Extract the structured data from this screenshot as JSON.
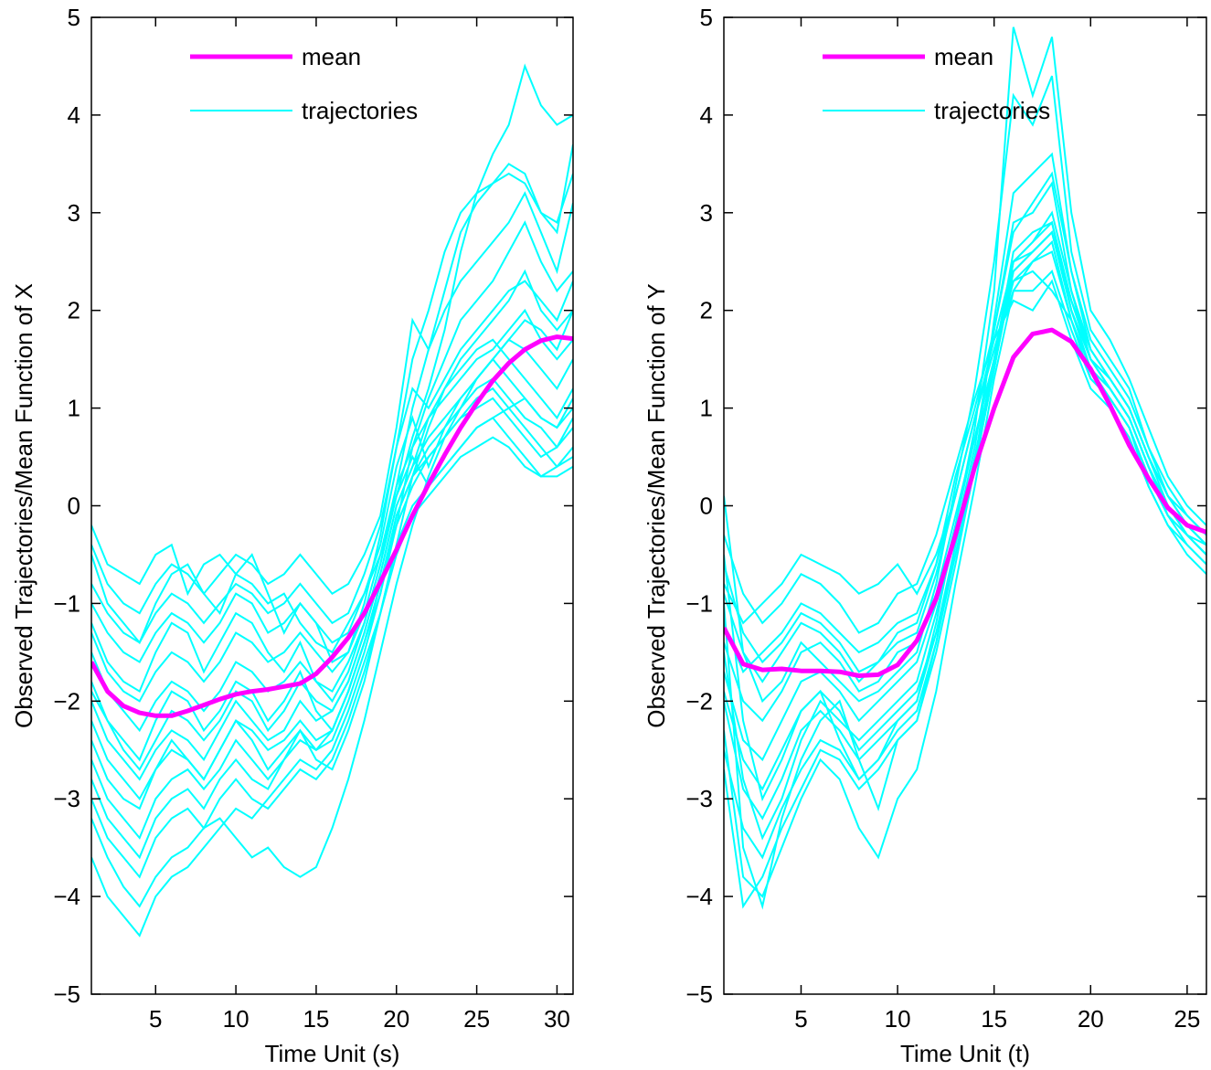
{
  "chart_data": [
    {
      "type": "line",
      "xlabel": "Time Unit (s)",
      "ylabel": "Observed Trajectories/Mean Function of X",
      "xlim": [
        1,
        31
      ],
      "ylim": [
        -5,
        5
      ],
      "xticks": [
        5,
        10,
        15,
        20,
        25,
        30
      ],
      "yticks": [
        -5,
        -4,
        -3,
        -2,
        -1,
        0,
        1,
        2,
        3,
        4,
        5
      ],
      "grid": false,
      "legend": {
        "placement": "top-left",
        "entries": [
          "mean",
          "trajectories"
        ]
      },
      "colors": {
        "mean": "#ff00ff",
        "trajectories": "#00ffff"
      },
      "mean": {
        "x": [
          1,
          2,
          3,
          4,
          5,
          6,
          7,
          8,
          9,
          10,
          11,
          12,
          13,
          14,
          15,
          16,
          17,
          18,
          19,
          20,
          21,
          22,
          23,
          24,
          25,
          26,
          27,
          28,
          29,
          30,
          31
        ],
        "y": [
          -1.6,
          -1.9,
          -2.05,
          -2.12,
          -2.15,
          -2.15,
          -2.1,
          -2.04,
          -1.98,
          -1.93,
          -1.9,
          -1.88,
          -1.85,
          -1.82,
          -1.72,
          -1.55,
          -1.35,
          -1.1,
          -0.78,
          -0.45,
          -0.1,
          0.22,
          0.52,
          0.8,
          1.05,
          1.28,
          1.46,
          1.6,
          1.69,
          1.73,
          1.71
        ]
      },
      "trajectories": [
        [
          -0.2,
          -0.6,
          -0.7,
          -0.8,
          -0.5,
          -0.4,
          -0.9,
          -0.6,
          -0.5,
          -0.7,
          -0.8,
          -1.0,
          -0.9,
          -1.2,
          -1.4,
          -1.5,
          -1.2,
          -0.9,
          -0.5,
          0.1,
          0.7,
          1.2,
          1.8,
          2.6,
          3.2,
          3.6,
          3.9,
          4.5,
          4.1,
          3.9,
          4.0
        ],
        [
          -0.5,
          -1.0,
          -1.2,
          -1.4,
          -1.0,
          -0.7,
          -0.6,
          -0.9,
          -1.1,
          -0.7,
          -0.5,
          -0.9,
          -1.3,
          -1.0,
          -1.2,
          -1.6,
          -1.5,
          -1.0,
          -0.3,
          0.6,
          1.5,
          2.0,
          2.6,
          3.0,
          3.2,
          3.3,
          3.5,
          3.4,
          3.0,
          2.8,
          3.7
        ],
        [
          -1.2,
          -1.6,
          -1.8,
          -1.9,
          -1.5,
          -1.2,
          -1.3,
          -1.7,
          -1.4,
          -1.1,
          -1.2,
          -1.5,
          -1.7,
          -1.4,
          -1.8,
          -2.0,
          -1.7,
          -1.2,
          -0.6,
          0.2,
          1.0,
          1.6,
          2.0,
          2.3,
          2.5,
          2.7,
          2.9,
          3.2,
          2.8,
          2.4,
          3.1
        ],
        [
          -1.8,
          -2.2,
          -2.4,
          -2.6,
          -2.2,
          -1.9,
          -2.0,
          -2.3,
          -2.1,
          -1.8,
          -1.9,
          -2.2,
          -2.0,
          -1.7,
          -2.1,
          -2.3,
          -1.9,
          -1.4,
          -0.9,
          -0.2,
          0.6,
          1.1,
          1.5,
          1.9,
          2.1,
          2.3,
          2.6,
          2.9,
          2.5,
          2.2,
          2.4
        ],
        [
          -2.4,
          -2.8,
          -3.0,
          -3.1,
          -2.7,
          -2.4,
          -2.6,
          -2.8,
          -2.5,
          -2.2,
          -2.4,
          -2.7,
          -2.5,
          -2.3,
          -2.6,
          -2.7,
          -2.3,
          -1.8,
          -1.1,
          -0.4,
          0.3,
          0.8,
          1.2,
          1.5,
          1.7,
          1.9,
          2.1,
          2.4,
          2.0,
          1.8,
          2.0
        ],
        [
          -3.2,
          -3.6,
          -3.9,
          -4.1,
          -3.8,
          -3.6,
          -3.5,
          -3.3,
          -3.2,
          -3.4,
          -3.6,
          -3.5,
          -3.7,
          -3.8,
          -3.7,
          -3.3,
          -2.8,
          -2.2,
          -1.5,
          -0.8,
          -0.2,
          0.3,
          0.7,
          1.0,
          1.3,
          1.5,
          1.7,
          1.6,
          1.4,
          1.2,
          1.5
        ],
        [
          -2.0,
          -2.4,
          -2.6,
          -2.8,
          -2.5,
          -2.3,
          -2.4,
          -2.6,
          -2.3,
          -2.0,
          -2.2,
          -2.4,
          -2.3,
          -2.0,
          -2.2,
          -2.1,
          -1.8,
          -1.3,
          -0.7,
          0.0,
          0.4,
          0.9,
          1.2,
          1.4,
          1.6,
          1.7,
          1.5,
          1.3,
          1.1,
          0.9,
          1.2
        ],
        [
          -1.0,
          -1.3,
          -1.5,
          -1.6,
          -1.3,
          -1.1,
          -1.2,
          -1.4,
          -1.2,
          -0.9,
          -1.0,
          -1.3,
          -1.2,
          -1.0,
          -1.2,
          -1.4,
          -1.3,
          -0.9,
          -0.4,
          0.4,
          0.9,
          0.4,
          0.8,
          1.1,
          1.3,
          1.5,
          1.7,
          1.9,
          1.8,
          1.6,
          2.0
        ],
        [
          -2.8,
          -3.2,
          -3.4,
          -3.6,
          -3.2,
          -3.0,
          -2.9,
          -3.1,
          -2.8,
          -2.6,
          -2.8,
          -2.9,
          -2.6,
          -2.3,
          -2.5,
          -2.4,
          -2.0,
          -1.5,
          -0.9,
          -0.1,
          0.3,
          0.5,
          0.7,
          0.9,
          1.0,
          1.1,
          0.9,
          0.7,
          0.5,
          0.6,
          0.9
        ],
        [
          -1.5,
          -1.9,
          -2.1,
          -2.3,
          -2.0,
          -1.8,
          -1.9,
          -2.1,
          -1.9,
          -1.6,
          -1.7,
          -1.9,
          -1.8,
          -1.6,
          -1.8,
          -1.9,
          -1.6,
          -1.2,
          -0.6,
          0.1,
          0.5,
          0.2,
          0.4,
          0.6,
          0.8,
          0.9,
          1.0,
          1.1,
          0.9,
          0.8,
          1.1
        ],
        [
          -3.6,
          -4.0,
          -4.2,
          -4.4,
          -4.0,
          -3.8,
          -3.7,
          -3.5,
          -3.3,
          -3.1,
          -3.2,
          -3.0,
          -2.8,
          -2.6,
          -2.7,
          -2.5,
          -2.1,
          -1.6,
          -1.1,
          -0.5,
          -0.1,
          0.1,
          0.3,
          0.5,
          0.6,
          0.7,
          0.6,
          0.4,
          0.3,
          0.4,
          0.6
        ],
        [
          -0.8,
          -1.1,
          -1.3,
          -1.4,
          -1.1,
          -0.9,
          -1.0,
          -1.2,
          -1.0,
          -0.8,
          -0.9,
          -1.1,
          -1.0,
          -0.8,
          -1.0,
          -1.2,
          -1.1,
          -0.7,
          -0.2,
          0.6,
          1.2,
          1.0,
          1.3,
          1.6,
          1.8,
          2.0,
          2.2,
          2.3,
          2.1,
          1.9,
          2.3
        ],
        [
          -2.2,
          -2.6,
          -2.8,
          -3.0,
          -2.7,
          -2.5,
          -2.6,
          -2.8,
          -2.5,
          -2.2,
          -2.3,
          -2.5,
          -2.4,
          -2.2,
          -2.4,
          -2.3,
          -1.9,
          -1.4,
          -0.8,
          -0.1,
          0.3,
          0.6,
          0.8,
          1.0,
          1.2,
          1.3,
          1.1,
          0.9,
          0.8,
          0.6,
          0.8
        ],
        [
          -1.3,
          -1.7,
          -1.9,
          -2.0,
          -1.7,
          -1.5,
          -1.6,
          -1.8,
          -1.6,
          -1.3,
          -1.4,
          -1.6,
          -1.5,
          -1.3,
          -1.5,
          -1.7,
          -1.5,
          -1.1,
          -0.5,
          0.2,
          0.6,
          0.9,
          1.1,
          1.3,
          1.5,
          1.6,
          1.8,
          2.0,
          1.7,
          1.5,
          1.7
        ],
        [
          -2.6,
          -3.0,
          -3.2,
          -3.4,
          -3.0,
          -2.8,
          -2.7,
          -2.9,
          -2.7,
          -2.4,
          -2.6,
          -2.8,
          -2.6,
          -2.4,
          -2.5,
          -2.3,
          -1.9,
          -1.4,
          -0.8,
          -0.2,
          0.2,
          0.5,
          0.7,
          0.9,
          1.1,
          1.2,
          1.0,
          0.8,
          0.6,
          0.4,
          0.5
        ],
        [
          -0.4,
          -0.8,
          -1.0,
          -1.1,
          -0.8,
          -0.6,
          -0.7,
          -0.9,
          -0.7,
          -0.5,
          -0.6,
          -0.8,
          -0.7,
          -0.5,
          -0.7,
          -0.9,
          -0.8,
          -0.5,
          -0.1,
          0.8,
          1.9,
          1.6,
          2.2,
          2.8,
          3.1,
          3.3,
          3.4,
          3.3,
          3.0,
          2.9,
          3.4
        ],
        [
          -1.9,
          -2.2,
          -2.5,
          -2.7,
          -2.4,
          -2.1,
          -2.2,
          -2.4,
          -2.2,
          -1.9,
          -2.0,
          -2.3,
          -2.1,
          -1.8,
          -2.0,
          -2.1,
          -1.8,
          -1.3,
          -0.7,
          0.0,
          0.4,
          0.7,
          0.9,
          1.1,
          1.3,
          1.5,
          1.3,
          1.1,
          0.9,
          0.8,
          1.0
        ],
        [
          -3.0,
          -3.4,
          -3.6,
          -3.8,
          -3.4,
          -3.2,
          -3.1,
          -3.3,
          -3.0,
          -2.8,
          -3.0,
          -3.1,
          -2.9,
          -2.7,
          -2.8,
          -2.6,
          -2.2,
          -1.7,
          -1.1,
          -0.4,
          0.0,
          0.2,
          0.4,
          0.6,
          0.8,
          0.9,
          0.7,
          0.5,
          0.3,
          0.3,
          0.4
        ]
      ]
    },
    {
      "type": "line",
      "xlabel": "Time Unit (t)",
      "ylabel": "Observed Trajectories/Mean Function of Y",
      "xlim": [
        1,
        26
      ],
      "ylim": [
        -5,
        5
      ],
      "xticks": [
        5,
        10,
        15,
        20,
        25
      ],
      "yticks": [
        -5,
        -4,
        -3,
        -2,
        -1,
        0,
        1,
        2,
        3,
        4,
        5
      ],
      "grid": false,
      "legend": {
        "placement": "top-left",
        "entries": [
          "mean",
          "trajectories"
        ]
      },
      "colors": {
        "mean": "#ff00ff",
        "trajectories": "#00ffff"
      },
      "mean": {
        "x": [
          1,
          2,
          3,
          4,
          5,
          6,
          7,
          8,
          9,
          10,
          11,
          12,
          13,
          14,
          15,
          16,
          17,
          18,
          19,
          20,
          21,
          22,
          23,
          24,
          25,
          26
        ],
        "y": [
          -1.25,
          -1.62,
          -1.68,
          -1.67,
          -1.69,
          -1.69,
          -1.7,
          -1.74,
          -1.73,
          -1.63,
          -1.38,
          -0.95,
          -0.3,
          0.4,
          1.0,
          1.52,
          1.76,
          1.8,
          1.68,
          1.4,
          1.03,
          0.62,
          0.28,
          -0.02,
          -0.2,
          -0.27
        ]
      },
      "trajectories": [
        [
          0.1,
          -1.5,
          -2.0,
          -1.8,
          -1.4,
          -1.6,
          -1.8,
          -2.0,
          -1.9,
          -1.7,
          -1.5,
          -0.8,
          0.2,
          1.2,
          2.5,
          4.2,
          3.9,
          4.4,
          2.6,
          1.8,
          1.5,
          1.2,
          0.6,
          0.2,
          -0.1,
          -0.3
        ],
        [
          -0.5,
          -2.2,
          -3.0,
          -2.6,
          -2.1,
          -1.9,
          -2.4,
          -2.8,
          -2.6,
          -2.2,
          -2.0,
          -1.2,
          -0.2,
          0.8,
          2.2,
          4.9,
          4.2,
          4.8,
          3.0,
          2.0,
          1.7,
          1.3,
          0.8,
          0.3,
          0.0,
          -0.2
        ],
        [
          -1.0,
          -3.5,
          -4.1,
          -3.2,
          -2.6,
          -2.2,
          -2.0,
          -2.6,
          -3.1,
          -2.4,
          -2.2,
          -1.5,
          -0.6,
          0.4,
          1.9,
          3.2,
          3.4,
          3.6,
          2.4,
          1.6,
          1.3,
          1.0,
          0.5,
          0.0,
          -0.3,
          -0.5
        ],
        [
          -1.5,
          -2.8,
          -3.4,
          -3.0,
          -2.4,
          -2.0,
          -2.2,
          -2.4,
          -2.2,
          -2.0,
          -1.8,
          -1.1,
          -0.3,
          0.6,
          1.8,
          2.9,
          3.0,
          3.3,
          2.2,
          1.5,
          1.2,
          0.9,
          0.4,
          -0.1,
          -0.4,
          -0.6
        ],
        [
          -0.8,
          -1.2,
          -1.0,
          -0.8,
          -0.5,
          -0.6,
          -0.7,
          -0.9,
          -0.8,
          -0.6,
          -0.9,
          -0.5,
          0.1,
          0.9,
          1.6,
          2.3,
          2.4,
          2.2,
          1.9,
          1.4,
          1.1,
          0.8,
          0.3,
          -0.1,
          -0.3,
          -0.4
        ],
        [
          -1.7,
          -2.4,
          -2.6,
          -2.2,
          -1.8,
          -1.7,
          -1.9,
          -2.2,
          -2.0,
          -1.8,
          -1.6,
          -1.0,
          -0.2,
          0.7,
          1.5,
          2.6,
          2.8,
          2.9,
          2.0,
          1.4,
          1.2,
          0.9,
          0.4,
          0.0,
          -0.2,
          -0.4
        ],
        [
          -2.3,
          -3.8,
          -4.0,
          -3.5,
          -3.0,
          -2.6,
          -2.8,
          -3.3,
          -3.6,
          -3.0,
          -2.7,
          -1.9,
          -0.8,
          0.2,
          1.3,
          2.2,
          2.5,
          2.7,
          1.9,
          1.3,
          1.1,
          0.8,
          0.2,
          -0.2,
          -0.5,
          -0.7
        ],
        [
          -0.3,
          -0.9,
          -1.2,
          -1.0,
          -0.7,
          -0.8,
          -1.0,
          -1.3,
          -1.2,
          -0.9,
          -0.8,
          -0.3,
          0.4,
          1.1,
          1.7,
          2.1,
          2.0,
          2.3,
          1.7,
          1.2,
          1.0,
          0.7,
          0.2,
          -0.2,
          -0.4,
          -0.6
        ],
        [
          -1.9,
          -2.6,
          -2.9,
          -2.5,
          -2.1,
          -1.9,
          -2.1,
          -2.5,
          -2.3,
          -2.1,
          -1.9,
          -1.3,
          -0.5,
          0.4,
          1.4,
          2.4,
          2.6,
          2.8,
          2.1,
          1.6,
          1.3,
          1.0,
          0.5,
          0.1,
          -0.2,
          -0.4
        ],
        [
          -1.2,
          -1.7,
          -1.5,
          -1.3,
          -1.0,
          -1.1,
          -1.3,
          -1.5,
          -1.4,
          -1.2,
          -1.1,
          -0.6,
          0.1,
          0.9,
          1.6,
          2.2,
          2.2,
          2.4,
          1.8,
          1.3,
          1.1,
          0.8,
          0.3,
          -0.1,
          -0.3,
          -0.5
        ],
        [
          -2.7,
          -4.1,
          -3.8,
          -3.3,
          -2.9,
          -2.5,
          -2.6,
          -2.9,
          -2.7,
          -2.4,
          -2.2,
          -1.4,
          -0.4,
          0.5,
          1.4,
          2.5,
          2.7,
          3.0,
          2.2,
          1.6,
          1.3,
          1.0,
          0.5,
          0.1,
          -0.2,
          -0.4
        ],
        [
          -0.6,
          -1.3,
          -1.6,
          -1.4,
          -1.1,
          -1.2,
          -1.4,
          -1.7,
          -1.6,
          -1.3,
          -1.2,
          -0.6,
          0.3,
          1.0,
          1.8,
          2.8,
          3.1,
          3.4,
          2.4,
          1.7,
          1.4,
          1.1,
          0.6,
          0.1,
          -0.1,
          -0.3
        ],
        [
          -1.4,
          -2.0,
          -2.2,
          -1.9,
          -1.5,
          -1.4,
          -1.6,
          -1.9,
          -1.8,
          -1.5,
          -1.4,
          -0.9,
          -0.1,
          0.7,
          1.5,
          2.3,
          2.5,
          2.6,
          1.9,
          1.4,
          1.2,
          0.9,
          0.4,
          0.0,
          -0.3,
          -0.5
        ],
        [
          -2.0,
          -2.9,
          -3.2,
          -2.8,
          -2.3,
          -2.1,
          -2.3,
          -2.6,
          -2.4,
          -2.2,
          -2.0,
          -1.3,
          -0.4,
          0.5,
          1.5,
          2.5,
          2.6,
          2.8,
          2.0,
          1.5,
          1.2,
          0.9,
          0.4,
          0.0,
          -0.3,
          -0.5
        ],
        [
          -0.9,
          -1.5,
          -1.8,
          -1.5,
          -1.2,
          -1.3,
          -1.5,
          -1.8,
          -1.6,
          -1.4,
          -1.3,
          -0.7,
          0.1,
          0.9,
          1.7,
          2.5,
          2.7,
          2.9,
          2.1,
          1.5,
          1.3,
          1.0,
          0.5,
          0.1,
          -0.2,
          -0.4
        ],
        [
          -2.5,
          -3.3,
          -3.6,
          -3.1,
          -2.7,
          -2.4,
          -2.5,
          -2.8,
          -2.6,
          -2.3,
          -2.1,
          -1.4,
          -0.5,
          0.4,
          1.4,
          2.4,
          2.6,
          2.8,
          2.0,
          1.5,
          1.2,
          0.9,
          0.4,
          0.0,
          -0.3,
          -0.5
        ]
      ]
    }
  ]
}
